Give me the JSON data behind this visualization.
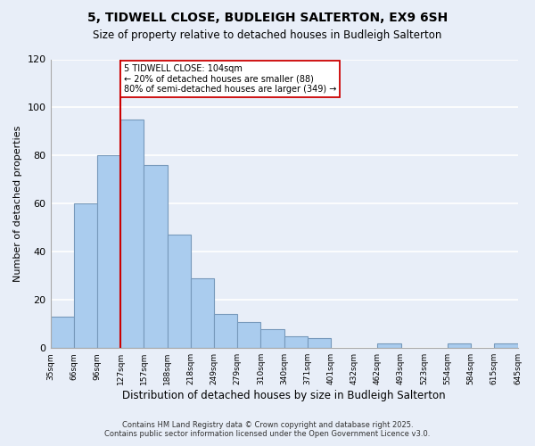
{
  "title_line1": "5, TIDWELL CLOSE, BUDLEIGH SALTERTON, EX9 6SH",
  "title_line2": "Size of property relative to detached houses in Budleigh Salterton",
  "xlabel": "Distribution of detached houses by size in Budleigh Salterton",
  "ylabel": "Number of detached properties",
  "bar_values": [
    13,
    60,
    80,
    95,
    76,
    47,
    29,
    14,
    11,
    8,
    5,
    4,
    0,
    0,
    2,
    0,
    0,
    2,
    0,
    2
  ],
  "bin_labels": [
    "35sqm",
    "66sqm",
    "96sqm",
    "127sqm",
    "157sqm",
    "188sqm",
    "218sqm",
    "249sqm",
    "279sqm",
    "310sqm",
    "340sqm",
    "371sqm",
    "401sqm",
    "432sqm",
    "462sqm",
    "493sqm",
    "523sqm",
    "554sqm",
    "584sqm",
    "615sqm",
    "645sqm"
  ],
  "bar_color": "#aaccee",
  "bar_edge_color": "#7799bb",
  "vline_color": "#cc0000",
  "vline_x_index": 2.5,
  "annotation_text": "5 TIDWELL CLOSE: 104sqm\n← 20% of detached houses are smaller (88)\n80% of semi-detached houses are larger (349) →",
  "annotation_box_color": "#ffffff",
  "annotation_box_edge": "#cc0000",
  "ylim": [
    0,
    120
  ],
  "yticks": [
    0,
    20,
    40,
    60,
    80,
    100,
    120
  ],
  "background_color": "#e8eef8",
  "grid_color": "#ffffff",
  "footer_line1": "Contains HM Land Registry data © Crown copyright and database right 2025.",
  "footer_line2": "Contains public sector information licensed under the Open Government Licence v3.0."
}
